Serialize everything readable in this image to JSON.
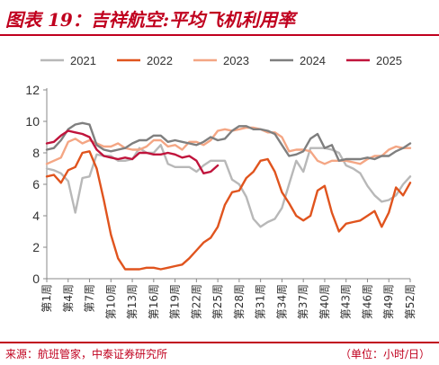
{
  "header": {
    "title": "图表 19：吉祥航空:平均飞机利用率"
  },
  "footer": {
    "source": "来源：航班管家，中泰证券研究所",
    "unit": "（单位：小时/日）"
  },
  "chart_data": {
    "type": "line",
    "title": "",
    "xlabel": "",
    "ylabel": "",
    "ylim": [
      0,
      12
    ],
    "yticks": [
      0,
      2,
      4,
      6,
      8,
      10,
      12
    ],
    "grid": false,
    "legend_position": "top",
    "x": [
      "第1周",
      "第2周",
      "第3周",
      "第4周",
      "第5周",
      "第6周",
      "第7周",
      "第8周",
      "第9周",
      "第10周",
      "第11周",
      "第12周",
      "第13周",
      "第14周",
      "第15周",
      "第16周",
      "第17周",
      "第18周",
      "第19周",
      "第20周",
      "第21周",
      "第22周",
      "第23周",
      "第24周",
      "第25周",
      "第26周",
      "第27周",
      "第28周",
      "第29周",
      "第30周",
      "第31周",
      "第32周",
      "第33周",
      "第34周",
      "第35周",
      "第36周",
      "第37周",
      "第38周",
      "第39周",
      "第40周",
      "第41周",
      "第42周",
      "第43周",
      "第44周",
      "第45周",
      "第46周",
      "第47周",
      "第48周",
      "第49周",
      "第50周",
      "第51周",
      "第52周"
    ],
    "x_tick_labels": [
      "第1周",
      "第4周",
      "第7周",
      "第10周",
      "第13周",
      "第16周",
      "第19周",
      "第22周",
      "第25周",
      "第28周",
      "第31周",
      "第34周",
      "第37周",
      "第40周",
      "第43周",
      "第46周",
      "第49周",
      "第52周"
    ],
    "series": [
      {
        "name": "2021",
        "color": "#b8b8b8",
        "values": [
          7.0,
          6.9,
          6.7,
          6.2,
          4.2,
          6.4,
          6.5,
          7.9,
          7.8,
          7.8,
          7.5,
          7.5,
          7.6,
          8.3,
          8.0,
          8.0,
          8.5,
          7.3,
          7.1,
          7.1,
          7.1,
          6.8,
          7.2,
          7.5,
          7.5,
          7.5,
          6.3,
          6.0,
          5.2,
          3.8,
          3.3,
          3.6,
          3.8,
          4.5,
          6.0,
          7.5,
          6.8,
          8.3,
          8.3,
          8.3,
          8.2,
          8.0,
          7.2,
          7.0,
          6.7,
          5.9,
          5.3,
          4.9,
          5.0,
          5.3,
          6.0,
          6.5
        ]
      },
      {
        "name": "2022",
        "color": "#e0541e",
        "values": [
          6.5,
          6.6,
          6.1,
          6.9,
          7.1,
          8.0,
          8.1,
          7.0,
          5.0,
          2.8,
          1.3,
          0.6,
          0.6,
          0.6,
          0.7,
          0.7,
          0.6,
          0.7,
          0.8,
          0.9,
          1.3,
          1.8,
          2.3,
          2.6,
          3.3,
          4.7,
          5.5,
          5.6,
          6.4,
          6.8,
          7.5,
          7.6,
          6.8,
          5.5,
          4.8,
          4.0,
          3.7,
          4.0,
          5.6,
          5.9,
          4.2,
          3.0,
          3.5,
          3.6,
          3.7,
          4.0,
          4.3,
          3.3,
          4.2,
          5.8,
          5.3,
          6.1
        ]
      },
      {
        "name": "2023",
        "color": "#f4a684",
        "values": [
          7.3,
          7.5,
          7.7,
          8.7,
          8.9,
          8.6,
          8.8,
          8.6,
          8.4,
          8.4,
          8.6,
          8.3,
          8.2,
          8.2,
          8.4,
          8.8,
          8.8,
          8.4,
          8.5,
          8.2,
          8.7,
          8.7,
          8.5,
          8.8,
          9.4,
          9.5,
          9.4,
          9.5,
          9.6,
          9.6,
          9.5,
          9.3,
          9.3,
          9.0,
          8.1,
          8.2,
          8.2,
          8.1,
          7.5,
          7.3,
          7.5,
          7.5,
          7.5,
          7.4,
          7.3,
          7.6,
          7.8,
          7.8,
          8.2,
          8.4,
          8.3,
          8.3
        ]
      },
      {
        "name": "2024",
        "color": "#7f7f7f",
        "values": [
          8.2,
          8.3,
          8.8,
          9.5,
          9.8,
          9.9,
          9.8,
          8.5,
          8.2,
          8.1,
          8.2,
          8.3,
          8.6,
          8.8,
          8.8,
          9.1,
          9.1,
          8.7,
          8.8,
          8.7,
          8.6,
          8.5,
          8.7,
          9.0,
          8.8,
          8.9,
          9.4,
          9.7,
          9.7,
          9.5,
          9.5,
          9.4,
          9.2,
          8.5,
          7.8,
          7.9,
          8.1,
          8.9,
          9.2,
          8.3,
          8.5,
          7.5,
          7.6,
          7.6,
          7.6,
          7.7,
          7.6,
          7.8,
          7.8,
          8.1,
          8.3,
          8.6
        ]
      },
      {
        "name": "2025",
        "color": "#c0143c",
        "values": [
          8.6,
          8.7,
          9.1,
          9.4,
          9.3,
          9.2,
          9.0,
          8.2,
          7.8,
          7.7,
          7.6,
          7.7,
          7.6,
          8.0,
          8.0,
          7.9,
          7.9,
          8.0,
          7.9,
          7.7,
          7.8,
          7.5,
          6.7,
          6.8,
          7.2,
          null,
          null,
          null,
          null,
          null,
          null,
          null,
          null,
          null,
          null,
          null,
          null,
          null,
          null,
          null,
          null,
          null,
          null,
          null,
          null,
          null,
          null,
          null,
          null,
          null,
          null,
          null
        ]
      }
    ]
  }
}
